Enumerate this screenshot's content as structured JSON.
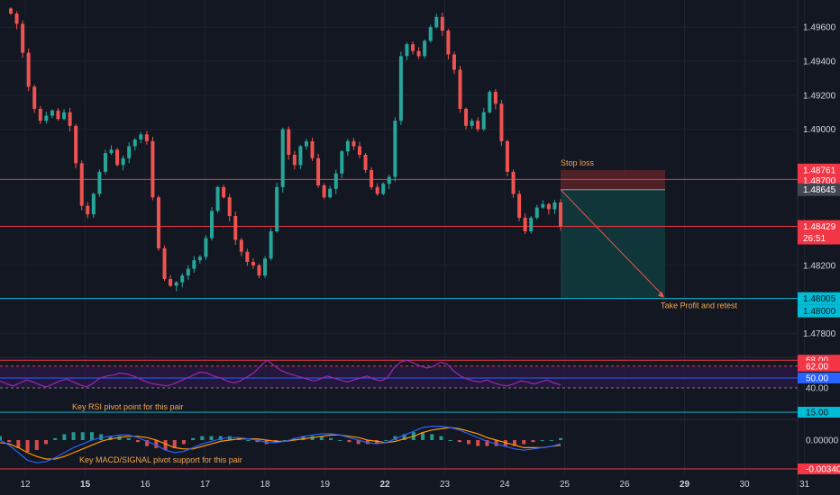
{
  "colors": {
    "background": "#131722",
    "grid": "#1e2230",
    "up": "#26a69a",
    "down": "#ef5350",
    "red_line": "#f23645",
    "teal_line": "#00bcd4",
    "rsi": "#9c27b0",
    "rsi_band": "#2a1a45",
    "macd": "#2962ff",
    "signal": "#ff9800",
    "orange_text": "#f0a64e",
    "text": "#d1d4dc",
    "stop_zone": "#5b2328",
    "target_zone": "#123a3c"
  },
  "chart_data": {
    "type": "candlestick",
    "instrument_scale": "price",
    "price_axis": {
      "ticks": [
        "1.49600",
        "1.49400",
        "1.49200",
        "1.49000",
        "1.48200",
        "1.47800"
      ],
      "range": [
        1.4767,
        1.4976
      ]
    },
    "time_axis": {
      "labels": [
        "12",
        "15",
        "16",
        "17",
        "18",
        "19",
        "22",
        "23",
        "24",
        "25",
        "26",
        "29",
        "30",
        "31"
      ],
      "bold_labels": [
        "15",
        "22",
        "29"
      ]
    },
    "candles_close_path": [
      1.4968,
      1.4962,
      1.4945,
      1.4925,
      1.4912,
      1.4905,
      1.4908,
      1.4911,
      1.4906,
      1.491,
      1.4902,
      1.488,
      1.4855,
      1.485,
      1.4862,
      1.4875,
      1.4886,
      1.4888,
      1.4879,
      1.4883,
      1.489,
      1.4894,
      1.4897,
      1.4893,
      1.486,
      1.483,
      1.4812,
      1.4808,
      1.481,
      1.4814,
      1.4818,
      1.4823,
      1.4825,
      1.4836,
      1.4852,
      1.4866,
      1.486,
      1.4849,
      1.4835,
      1.4828,
      1.4822,
      1.482,
      1.4814,
      1.4824,
      1.484,
      1.4866,
      1.49,
      1.4885,
      1.4879,
      1.489,
      1.4893,
      1.4883,
      1.4867,
      1.486,
      1.4865,
      1.4874,
      1.4887,
      1.4893,
      1.489,
      1.4885,
      1.4876,
      1.4866,
      1.4862,
      1.4868,
      1.4872,
      1.4905,
      1.4943,
      1.495,
      1.4946,
      1.4943,
      1.4952,
      1.496,
      1.4966,
      1.4958,
      1.4944,
      1.4935,
      1.4912,
      1.4902,
      1.4905,
      1.49,
      1.491,
      1.4922,
      1.4915,
      1.4893,
      1.4875,
      1.4862,
      1.4848,
      1.484,
      1.4848,
      1.4854,
      1.4856,
      1.4853,
      1.4857,
      1.48429
    ],
    "horizontal_lines": [
      {
        "price": 1.48705,
        "color_key": "red_line"
      },
      {
        "price": 1.48429,
        "color_key": "red_line"
      },
      {
        "price": 1.48005,
        "color_key": "teal_line"
      }
    ],
    "position_tool": {
      "entry": 1.48645,
      "stop": 1.48761,
      "target": 1.48005,
      "stop_label": "Stop loss",
      "target_label": "Take Profit and retest"
    },
    "price_tags": [
      {
        "text": "1.48761",
        "price": 1.48761,
        "style": "red"
      },
      {
        "text": "1.48700",
        "price": 1.487,
        "style": "red"
      },
      {
        "text": "1.48645",
        "price": 1.48645,
        "style": "grey"
      },
      {
        "text": "1.48429",
        "price": 1.48429,
        "style": "red"
      },
      {
        "text": "26:51",
        "price": 1.48429,
        "style": "red",
        "countdown": true
      },
      {
        "text": "1.48005",
        "price": 1.48005,
        "style": "teal"
      },
      {
        "text": "1.48000",
        "price": 1.48,
        "style": "teal"
      }
    ],
    "rsi": {
      "levels": [
        {
          "text": "68.00",
          "value": 68,
          "style": "red"
        },
        {
          "text": "62.00",
          "value": 62,
          "style": "red"
        },
        {
          "text": "50.00",
          "value": 50,
          "style": "blue"
        },
        {
          "text": "40.00",
          "value": 40,
          "style": "none"
        },
        {
          "text": "15.00",
          "value": 15,
          "style": "teal"
        }
      ],
      "annotation": "Key RSI pivot point for this pair",
      "values": [
        47,
        44,
        42,
        45,
        48,
        46,
        43,
        41,
        44,
        47,
        49,
        46,
        43,
        41,
        45,
        50,
        52,
        53,
        55,
        54,
        52,
        49,
        46,
        44,
        43,
        42,
        44,
        47,
        50,
        53,
        56,
        55,
        52,
        50,
        47,
        45,
        47,
        51,
        55,
        62,
        68,
        63,
        58,
        55,
        53,
        51,
        49,
        47,
        49,
        52,
        50,
        48,
        46,
        48,
        50,
        52,
        49,
        47,
        50,
        60,
        66,
        68,
        65,
        62,
        60,
        62,
        66,
        64,
        57,
        52,
        49,
        47,
        46,
        48,
        45,
        43,
        42,
        44,
        47,
        46,
        44,
        46,
        48,
        45,
        43
      ]
    },
    "macd": {
      "ticks": [
        {
          "text": "0.00000",
          "value": 0
        }
      ],
      "tags": [
        {
          "text": "-0.00340",
          "value": -0.0034,
          "style": "red"
        }
      ],
      "annotation": "Key MACD/SIGNAL pivot support for this pair",
      "macd_values": [
        0.0,
        -0.0004,
        -0.001,
        -0.0016,
        -0.0018,
        -0.0017,
        -0.0014,
        -0.001,
        -0.0006,
        -0.0003,
        0.0,
        0.0002,
        0.0003,
        0.0004,
        0.0004,
        0.0002,
        -0.0001,
        -0.0004,
        -0.0008,
        -0.001,
        -0.0009,
        -0.0006,
        -0.0003,
        -0.0001,
        0.0001,
        0.0002,
        0.0002,
        0.0001,
        0.0,
        -0.0002,
        -0.0002,
        -0.0001,
        0.0001,
        0.0003,
        0.0004,
        0.0005,
        0.0005,
        0.0004,
        0.0002,
        0.0,
        -0.0002,
        -0.0003,
        -0.0002,
        0.0001,
        0.0004,
        0.0007,
        0.001,
        0.0011,
        0.0011,
        0.001,
        0.0008,
        0.0005,
        0.0002,
        -0.0001,
        -0.0003,
        -0.0005,
        -0.0007,
        -0.0008,
        -0.0007,
        -0.0006,
        -0.0005,
        -0.0003
      ],
      "signal_values": [
        -0.0002,
        -0.0003,
        -0.0006,
        -0.001,
        -0.0013,
        -0.0015,
        -0.0015,
        -0.0013,
        -0.001,
        -0.0007,
        -0.0004,
        -0.0001,
        0.0001,
        0.0002,
        0.0003,
        0.0003,
        0.0002,
        0.0,
        -0.0003,
        -0.0006,
        -0.0007,
        -0.0007,
        -0.0005,
        -0.0003,
        -0.0001,
        0.0,
        0.0001,
        0.0001,
        0.0001,
        0.0,
        -0.0001,
        -0.0001,
        0.0,
        0.0001,
        0.0002,
        0.0003,
        0.0004,
        0.0004,
        0.0003,
        0.0002,
        0.0,
        -0.0001,
        -0.0002,
        -0.0001,
        0.0001,
        0.0003,
        0.0006,
        0.0008,
        0.0009,
        0.001,
        0.0009,
        0.0007,
        0.0005,
        0.0002,
        0.0,
        -0.0002,
        -0.0004,
        -0.0006,
        -0.0006,
        -0.0006,
        -0.0005,
        -0.0004
      ]
    }
  }
}
